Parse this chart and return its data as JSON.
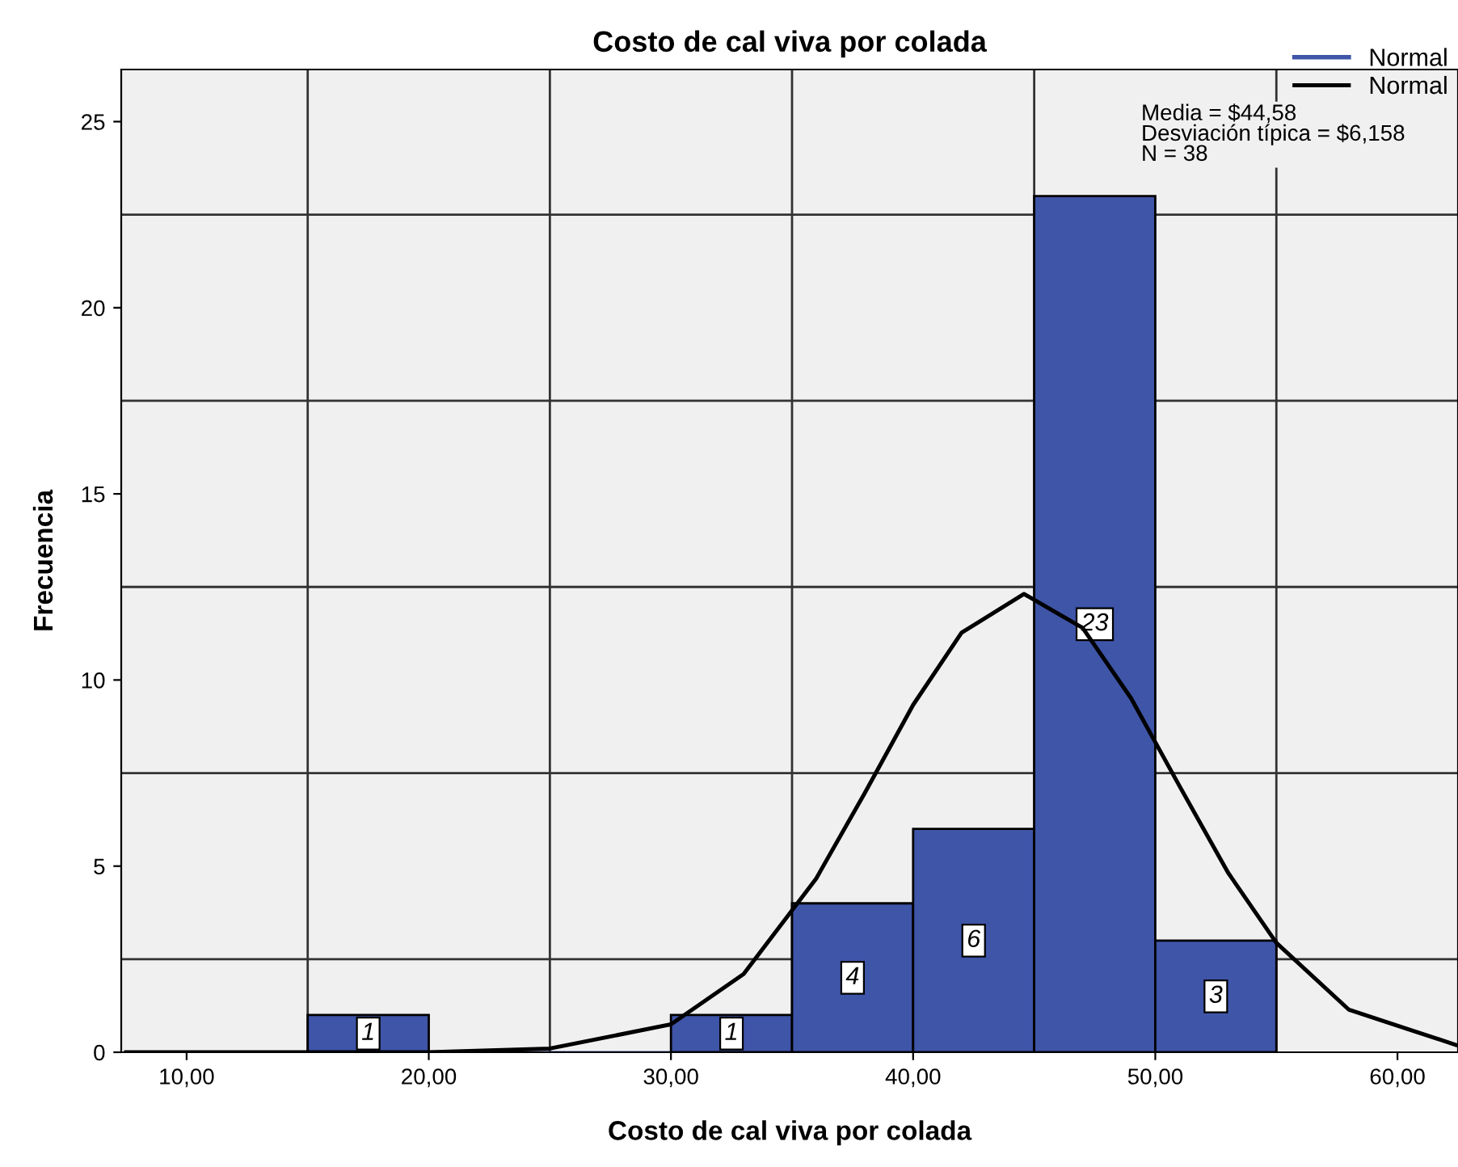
{
  "chart_data": {
    "type": "histogram",
    "title": "Costo de cal viva por colada",
    "xlabel": "Costo de cal viva por colada",
    "ylabel": "Frecuencia",
    "series": [
      {
        "name": "Normal",
        "color": "#3f55a8",
        "bins": [
          15,
          20,
          25,
          30,
          35,
          40,
          45,
          50,
          55
        ],
        "values": [
          1,
          0,
          0,
          1,
          4,
          6,
          23,
          3
        ],
        "value_labels": [
          "1",
          null,
          null,
          "1",
          "4",
          "6",
          "23",
          "3"
        ]
      },
      {
        "type": "line",
        "name": "Normal",
        "color": "#000000",
        "x": [
          7.5,
          10,
          15,
          20,
          25,
          30,
          33,
          36,
          38,
          40,
          42,
          44.58,
          47,
          49,
          51,
          53,
          55,
          58,
          62.4
        ],
        "values": [
          0,
          0,
          0,
          0,
          0.1,
          0.75,
          2.1,
          4.67,
          6.96,
          9.33,
          11.27,
          12.31,
          11.4,
          9.51,
          7.15,
          4.83,
          2.94,
          1.14,
          0.2
        ]
      }
    ],
    "annotations": [
      "Media = $44,58\nDesviación típica = $6,158\nN = 38"
    ],
    "xlim": [
      7.3,
      62.5
    ],
    "ylim": [
      0,
      26.4
    ],
    "xticks": [
      {
        "value": 10,
        "label": "10,00"
      },
      {
        "value": 20,
        "label": "20,00"
      },
      {
        "value": 30,
        "label": "30,00"
      },
      {
        "value": 40,
        "label": "40,00"
      },
      {
        "value": 50,
        "label": "50,00"
      },
      {
        "value": 60,
        "label": "60,00"
      }
    ],
    "yticks": [
      0,
      5,
      10,
      15,
      20,
      25
    ],
    "grid": true,
    "legend": "top right"
  }
}
